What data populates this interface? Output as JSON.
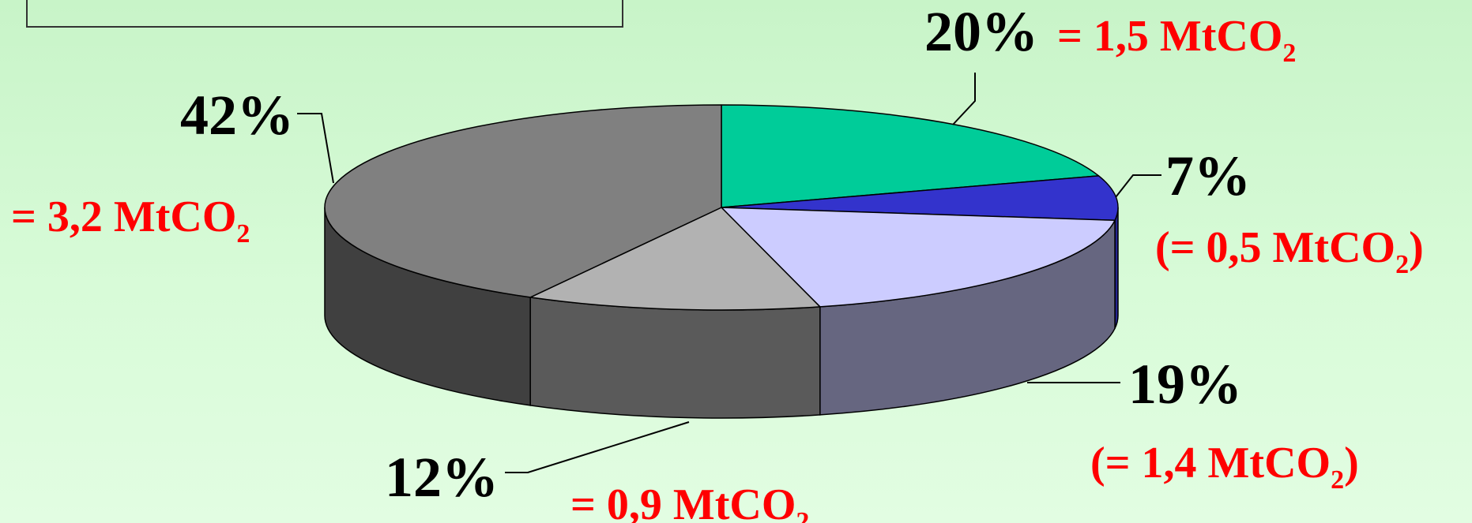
{
  "chart_data": {
    "type": "pie",
    "style": "3d",
    "legend": "none",
    "slices": [
      {
        "percent": 20,
        "value_text": "= 1,5 MtCO",
        "value_suffix": "",
        "color": "#00cc99",
        "side_color": "#00a07a"
      },
      {
        "percent": 7,
        "value_text": "(= 0,5 MtCO",
        "value_suffix": ")",
        "color": "#3333cc",
        "side_color": "#24248f"
      },
      {
        "percent": 19,
        "value_text": "(= 1,4 MtCO",
        "value_suffix": ")",
        "color": "#ccccff",
        "side_color": "#666680"
      },
      {
        "percent": 12,
        "value_text": "= 0,9 MtCO",
        "value_suffix": "",
        "color": "#b2b2b2",
        "side_color": "#5a5a5a"
      },
      {
        "percent": 42,
        "value_text": "= 3,2 MtCO",
        "value_suffix": "",
        "color": "#808080",
        "side_color": "#404040"
      }
    ],
    "subscript": "2",
    "value_color": "#ff0000"
  }
}
